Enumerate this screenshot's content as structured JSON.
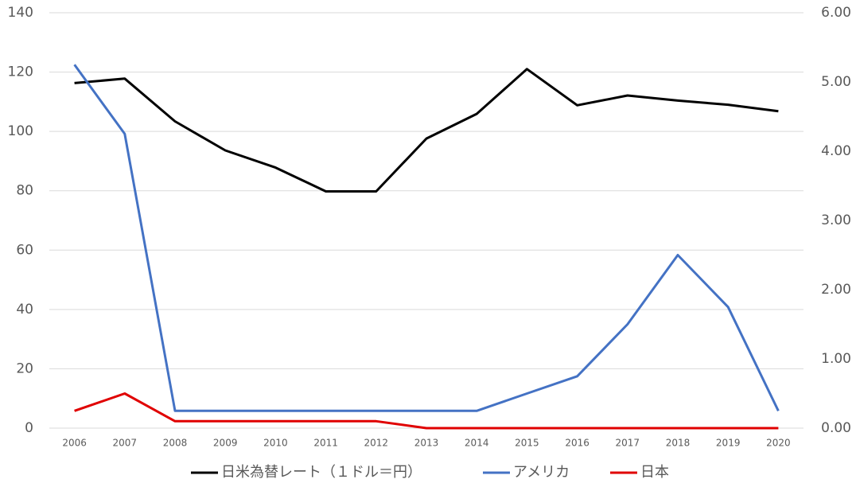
{
  "chart_data": {
    "type": "line",
    "categories": [
      "2006",
      "2007",
      "2008",
      "2009",
      "2010",
      "2011",
      "2012",
      "2013",
      "2014",
      "2015",
      "2016",
      "2017",
      "2018",
      "2019",
      "2020"
    ],
    "series": [
      {
        "name": "日米為替レート（１ドル＝円）",
        "color": "#000000",
        "values": [
          116.3,
          117.8,
          103.4,
          93.6,
          87.8,
          79.8,
          79.8,
          97.6,
          105.9,
          121.0,
          108.8,
          112.1,
          110.4,
          109.0,
          106.8
        ]
      },
      {
        "name": "アメリカ",
        "color": "#4472c4",
        "axis": "y2",
        "values": [
          5.25,
          4.25,
          0.25,
          0.25,
          0.25,
          0.25,
          0.25,
          0.25,
          0.25,
          0.5,
          0.75,
          1.5,
          2.5,
          1.75,
          0.25
        ]
      },
      {
        "name": "日本",
        "color": "#e00000",
        "axis": "y2",
        "values": [
          0.25,
          0.5,
          0.1,
          0.1,
          0.1,
          0.1,
          0.1,
          0,
          0,
          0,
          0,
          0,
          0,
          0,
          0
        ]
      }
    ],
    "ylim": [
      0,
      140
    ],
    "yticks": [
      0,
      20,
      40,
      60,
      80,
      100,
      120,
      140
    ],
    "y2lim": [
      0,
      6
    ],
    "y2ticks": [
      {
        "value": 0,
        "label": "0.00"
      },
      {
        "value": 1,
        "label": "1.00"
      },
      {
        "value": 2,
        "label": "2.00"
      },
      {
        "value": 3,
        "label": "3.00"
      },
      {
        "value": 4,
        "label": "4.00"
      },
      {
        "value": 5,
        "label": "5.00"
      },
      {
        "value": 6,
        "label": "6.00"
      }
    ],
    "grid": true,
    "legend": "bottom"
  }
}
